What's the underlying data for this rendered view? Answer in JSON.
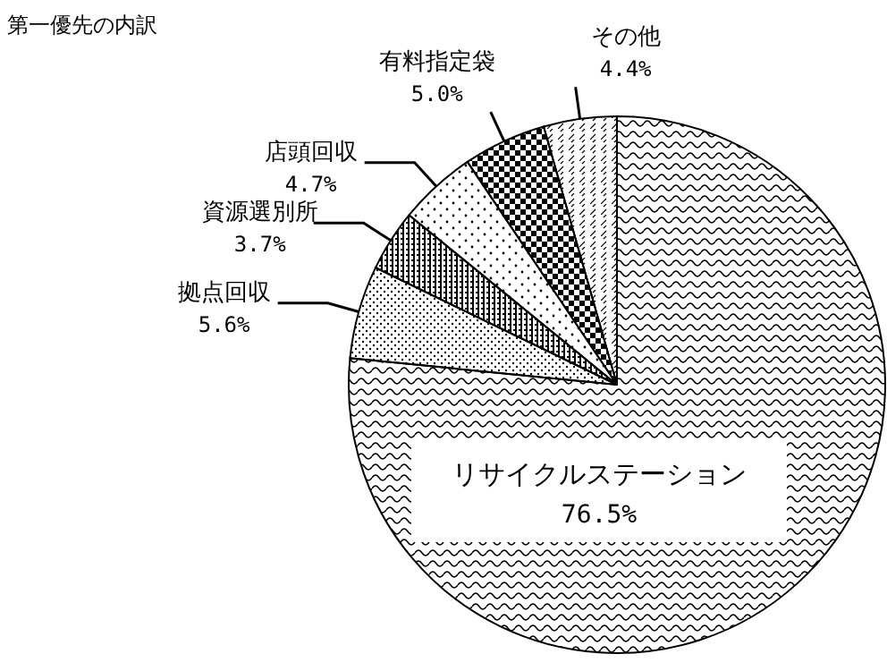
{
  "chart_data": {
    "type": "pie",
    "title": "第一優先の内訳",
    "categories": [
      "リサイクルステーション",
      "拠点回収",
      "資源選別所",
      "店頭回収",
      "有料指定袋",
      "その他"
    ],
    "values": [
      76.5,
      5.6,
      3.7,
      4.7,
      5.0,
      4.4
    ],
    "value_labels": [
      "76.5%",
      "5.6%",
      "3.7%",
      "4.7%",
      "5.0%",
      "4.4%"
    ]
  }
}
